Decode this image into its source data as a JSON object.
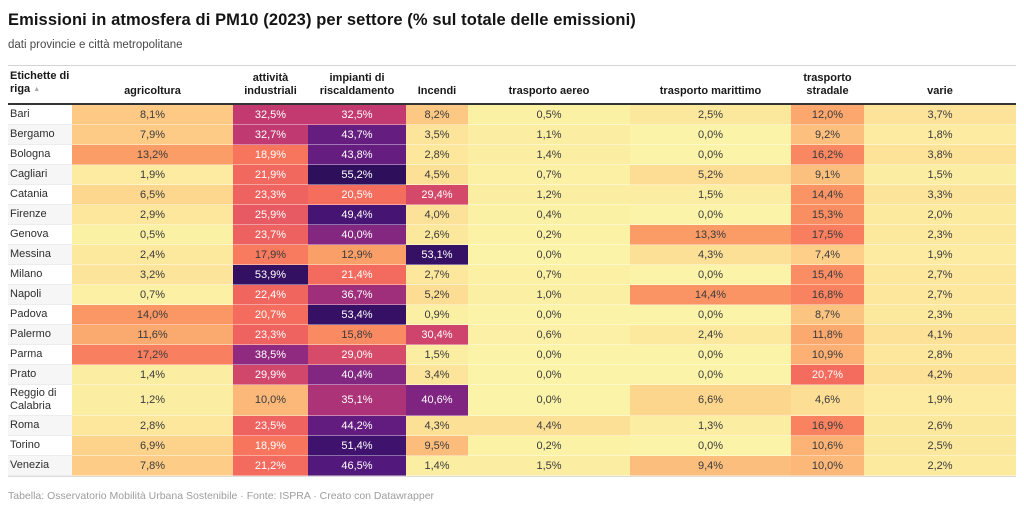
{
  "title": "Emissioni in atmosfera di PM10 (2023) per settore (% sul totale delle emissioni)",
  "subtitle": "dati provincie e città metropolitane",
  "footer": "Tabella: Osservatorio Mobilità Urbana Sostenibile · Fonte: ISPRA · Creato con Datawrapper",
  "row_header": {
    "label": "Etichette di riga",
    "sort_icon": "▲"
  },
  "chart_data": {
    "type": "heatmap",
    "title": "Emissioni in atmosfera di PM10 (2023) per settore (% sul totale delle emissioni)",
    "subtitle": "dati provincie e città metropolitane",
    "unit": "%",
    "value_format": "italian-decimal-comma-one-decimal",
    "legend_position": "none",
    "grid": false,
    "columns": [
      "agricoltura",
      "attività industriali",
      "impianti di riscaldamento",
      "Incendi",
      "trasporto aereo",
      "trasporto marittimo",
      "trasporto stradale",
      "varie"
    ],
    "rows": [
      {
        "label": "Bari",
        "values": [
          8.1,
          32.5,
          32.5,
          8.2,
          0.5,
          2.5,
          12.0,
          3.7
        ]
      },
      {
        "label": "Bergamo",
        "values": [
          7.9,
          32.7,
          43.7,
          3.5,
          1.1,
          0.0,
          9.2,
          1.8
        ]
      },
      {
        "label": "Bologna",
        "values": [
          13.2,
          18.9,
          43.8,
          2.8,
          1.4,
          0.0,
          16.2,
          3.8
        ]
      },
      {
        "label": "Cagliari",
        "values": [
          1.9,
          21.9,
          55.2,
          4.5,
          0.7,
          5.2,
          9.1,
          1.5
        ]
      },
      {
        "label": "Catania",
        "values": [
          6.5,
          23.3,
          20.5,
          29.4,
          1.2,
          1.5,
          14.4,
          3.3
        ]
      },
      {
        "label": "Firenze",
        "values": [
          2.9,
          25.9,
          49.4,
          4.0,
          0.4,
          0.0,
          15.3,
          2.0
        ]
      },
      {
        "label": "Genova",
        "values": [
          0.5,
          23.7,
          40.0,
          2.6,
          0.2,
          13.3,
          17.5,
          2.3
        ]
      },
      {
        "label": "Messina",
        "values": [
          2.4,
          17.9,
          12.9,
          53.1,
          0.0,
          4.3,
          7.4,
          1.9
        ]
      },
      {
        "label": "Milano",
        "values": [
          3.2,
          53.9,
          21.4,
          2.7,
          0.7,
          0.0,
          15.4,
          2.7
        ]
      },
      {
        "label": "Napoli",
        "values": [
          0.7,
          22.4,
          36.7,
          5.2,
          1.0,
          14.4,
          16.8,
          2.7
        ]
      },
      {
        "label": "Padova",
        "values": [
          14.0,
          20.7,
          53.4,
          0.9,
          0.0,
          0.0,
          8.7,
          2.3
        ]
      },
      {
        "label": "Palermo",
        "values": [
          11.6,
          23.3,
          15.8,
          30.4,
          0.6,
          2.4,
          11.8,
          4.1
        ]
      },
      {
        "label": "Parma",
        "values": [
          17.2,
          38.5,
          29.0,
          1.5,
          0.0,
          0.0,
          10.9,
          2.8
        ]
      },
      {
        "label": "Prato",
        "values": [
          1.4,
          29.9,
          40.4,
          3.4,
          0.0,
          0.0,
          20.7,
          4.2
        ]
      },
      {
        "label": "Reggio di Calabria",
        "values": [
          1.2,
          10.0,
          35.1,
          40.6,
          0.0,
          6.6,
          4.6,
          1.9
        ]
      },
      {
        "label": "Roma",
        "values": [
          2.8,
          23.5,
          44.2,
          4.3,
          4.4,
          1.3,
          16.9,
          2.6
        ]
      },
      {
        "label": "Torino",
        "values": [
          6.9,
          18.9,
          51.4,
          9.5,
          0.2,
          0.0,
          10.6,
          2.5
        ]
      },
      {
        "label": "Venezia",
        "values": [
          7.8,
          21.2,
          46.5,
          1.4,
          1.5,
          9.4,
          10.0,
          2.2
        ]
      }
    ],
    "color_scale": {
      "description": "magma reversed: pale yellow (0%) to dark purple (~55%)",
      "stops": [
        [
          0.0,
          "#FBF3A7"
        ],
        [
          6.5,
          "#FDD78E"
        ],
        [
          13.0,
          "#FB9E67"
        ],
        [
          19.5,
          "#F7705C"
        ],
        [
          26.0,
          "#E85A63"
        ],
        [
          32.5,
          "#C23A70"
        ],
        [
          39.0,
          "#8C2981"
        ],
        [
          45.5,
          "#57197F"
        ],
        [
          52.0,
          "#3B116B"
        ],
        [
          58.5,
          "#1F0C4A"
        ]
      ],
      "white_text_threshold": 18.5
    },
    "colors": {
      "dark_text": "#3a3a3a",
      "light_text": "#ffffff"
    }
  }
}
